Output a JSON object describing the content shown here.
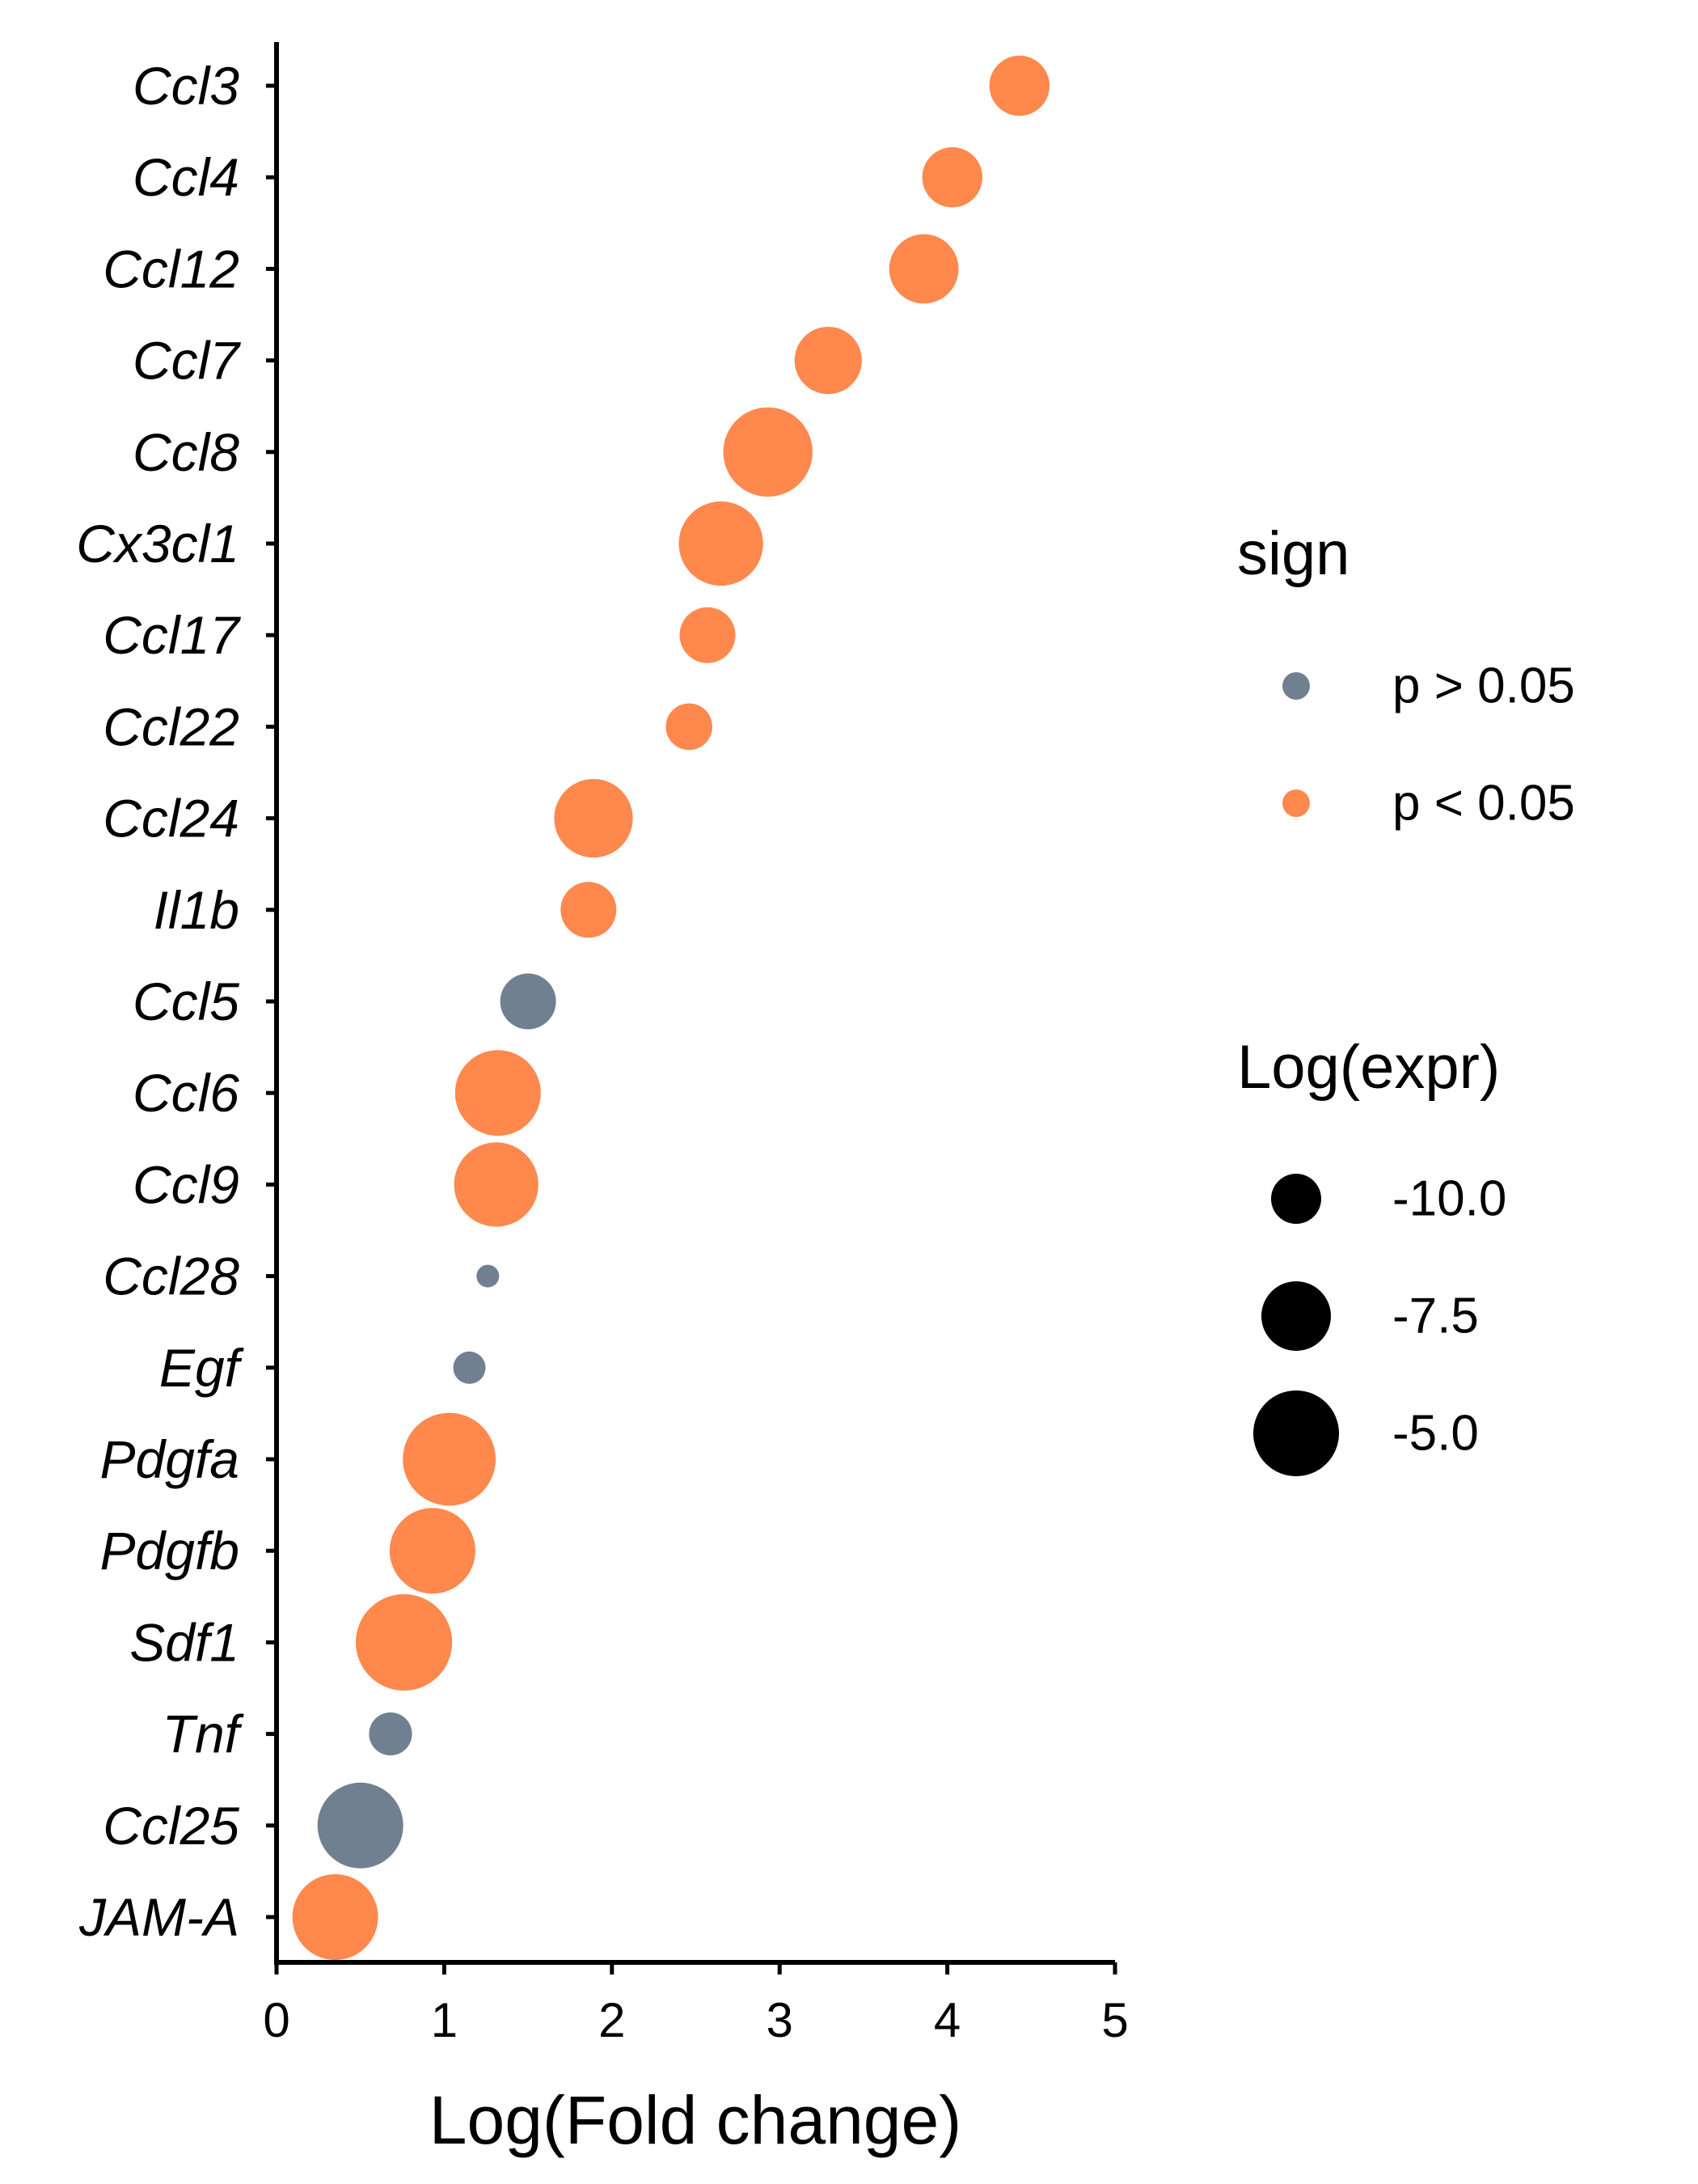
{
  "chart_data": {
    "type": "scatter",
    "xlabel": "Log(Fold change)",
    "ylabel": "",
    "xlim": [
      0,
      5
    ],
    "xticks": [
      "0",
      "1",
      "2",
      "3",
      "4",
      "5"
    ],
    "grid": false,
    "legend_placement": "right",
    "colors": {
      "p > 0.05": "#708090",
      "p < 0.05": "#ff884d",
      "size_key": "#000000"
    },
    "points": [
      {
        "gene": "Ccl3",
        "x": 4.43,
        "sign": "p < 0.05",
        "log_expr": -8.6
      },
      {
        "gene": "Ccl4",
        "x": 4.03,
        "sign": "p < 0.05",
        "log_expr": -8.6
      },
      {
        "gene": "Ccl12",
        "x": 3.86,
        "sign": "p < 0.05",
        "log_expr": -7.3
      },
      {
        "gene": "Ccl7",
        "x": 3.29,
        "sign": "p < 0.05",
        "log_expr": -7.6
      },
      {
        "gene": "Ccl8",
        "x": 2.93,
        "sign": "p < 0.05",
        "log_expr": -4.5
      },
      {
        "gene": "Cx3cl1",
        "x": 2.65,
        "sign": "p < 0.05",
        "log_expr": -5.2
      },
      {
        "gene": "Ccl17",
        "x": 2.57,
        "sign": "p < 0.05",
        "log_expr": -9.2
      },
      {
        "gene": "Ccl22",
        "x": 2.46,
        "sign": "p < 0.05",
        "log_expr": -10.5
      },
      {
        "gene": "Ccl24",
        "x": 1.89,
        "sign": "p < 0.05",
        "log_expr": -6.0
      },
      {
        "gene": "Il1b",
        "x": 1.86,
        "sign": "p < 0.05",
        "log_expr": -9.2
      },
      {
        "gene": "Ccl5",
        "x": 1.5,
        "sign": "p > 0.05",
        "log_expr": -9.2
      },
      {
        "gene": "Ccl6",
        "x": 1.32,
        "sign": "p < 0.05",
        "log_expr": -5.0
      },
      {
        "gene": "Ccl9",
        "x": 1.31,
        "sign": "p < 0.05",
        "log_expr": -5.2
      },
      {
        "gene": "Ccl28",
        "x": 1.26,
        "sign": "p > 0.05",
        "log_expr": -15.5
      },
      {
        "gene": "Egf",
        "x": 1.15,
        "sign": "p > 0.05",
        "log_expr": -12.5
      },
      {
        "gene": "Pdgfa",
        "x": 1.03,
        "sign": "p < 0.05",
        "log_expr": -4.0
      },
      {
        "gene": "Pdgfb",
        "x": 0.93,
        "sign": "p < 0.05",
        "log_expr": -5.0
      },
      {
        "gene": "Sdf1",
        "x": 0.76,
        "sign": "p < 0.05",
        "log_expr": -3.5
      },
      {
        "gene": "Tnf",
        "x": 0.68,
        "sign": "p > 0.05",
        "log_expr": -11.0
      },
      {
        "gene": "Ccl25",
        "x": 0.5,
        "sign": "p > 0.05",
        "log_expr": -5.0
      },
      {
        "gene": "JAM-A",
        "x": 0.35,
        "sign": "p < 0.05",
        "log_expr": -5.0
      }
    ],
    "legend": {
      "color": {
        "title": "sign",
        "entries": [
          "p > 0.05",
          "p < 0.05"
        ]
      },
      "size": {
        "title": "Log(expr)",
        "entries": [
          {
            "label": "-10.0",
            "value": -10.0
          },
          {
            "label": "-7.5",
            "value": -7.5
          },
          {
            "label": "-5.0",
            "value": -5.0
          }
        ]
      }
    }
  }
}
